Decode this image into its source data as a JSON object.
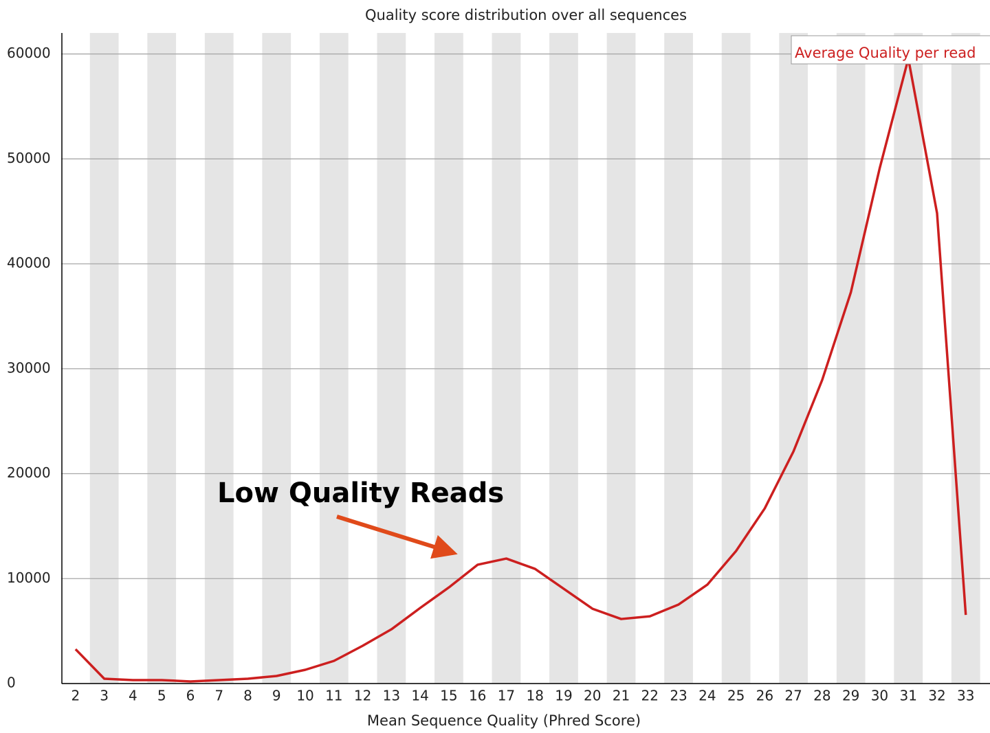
{
  "chart_data": {
    "type": "line",
    "title": "Quality score distribution over all sequences",
    "x_label": "Mean Sequence Quality (Phred Score)",
    "annotation": "Low Quality Reads",
    "categories": [
      "2",
      "3",
      "4",
      "5",
      "6",
      "7",
      "8",
      "9",
      "10",
      "11",
      "12",
      "13",
      "14",
      "15",
      "16",
      "17",
      "18",
      "19",
      "20",
      "21",
      "22",
      "23",
      "24",
      "25",
      "26",
      "27",
      "28",
      "29",
      "30",
      "31",
      "32",
      "33"
    ],
    "series": [
      {
        "name": "Average Quality per read",
        "color": "#cc1f1f",
        "values": [
          3270,
          460,
          330,
          330,
          200,
          330,
          460,
          720,
          1310,
          2160,
          3600,
          5170,
          7200,
          9160,
          11320,
          11910,
          10930,
          9030,
          7130,
          6150,
          6410,
          7530,
          9420,
          12630,
          16690,
          22120,
          28930,
          37300,
          49080,
          59560,
          44830,
          6540
        ]
      }
    ],
    "ylim": [
      0,
      62000
    ],
    "yticks": [
      0,
      10000,
      20000,
      30000,
      40000,
      50000,
      60000
    ],
    "grid": true
  }
}
